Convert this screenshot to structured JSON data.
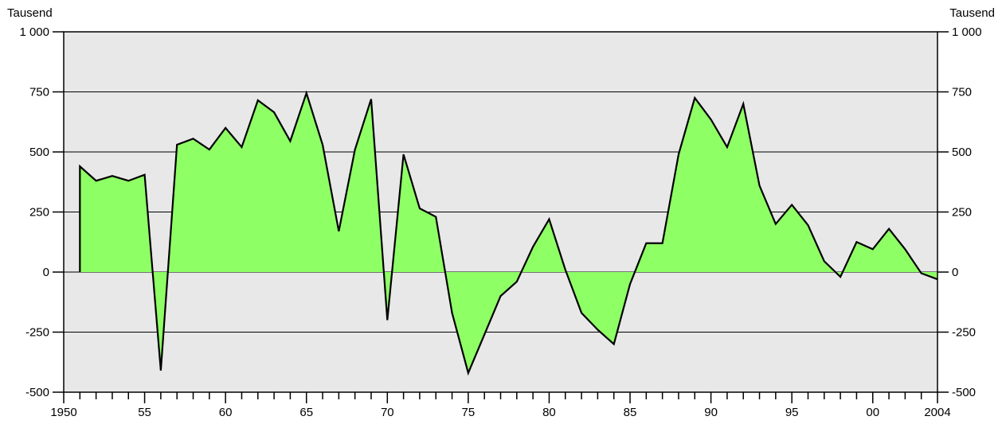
{
  "chart_data": {
    "type": "area",
    "unit_label_left": "Tausend",
    "unit_label_right": "Tausend",
    "ylim": [
      -500,
      1000
    ],
    "yticks": [
      1000,
      750,
      500,
      250,
      0,
      -250,
      -500
    ],
    "ytick_labels": [
      "1 000",
      "750",
      "500",
      "250",
      "0",
      "-250",
      "-500"
    ],
    "xlim": [
      1950,
      2004
    ],
    "xtick_years": [
      1950,
      1955,
      1960,
      1965,
      1970,
      1975,
      1980,
      1985,
      1990,
      1995,
      2000,
      2004
    ],
    "xtick_labels": [
      "1950",
      "55",
      "60",
      "65",
      "70",
      "75",
      "80",
      "85",
      "90",
      "95",
      "00",
      "2004"
    ],
    "grid": "horizontal",
    "colors": {
      "fill": "#8fff66",
      "line": "#000000",
      "plot_background": "#e8e8e8",
      "grid": "#000000"
    },
    "x": [
      1951,
      1952,
      1953,
      1954,
      1955,
      1956,
      1957,
      1958,
      1959,
      1960,
      1961,
      1962,
      1963,
      1964,
      1965,
      1966,
      1967,
      1968,
      1969,
      1970,
      1971,
      1972,
      1973,
      1974,
      1975,
      1976,
      1977,
      1978,
      1979,
      1980,
      1981,
      1982,
      1983,
      1984,
      1985,
      1986,
      1987,
      1988,
      1989,
      1990,
      1991,
      1992,
      1993,
      1994,
      1995,
      1996,
      1997,
      1998,
      1999,
      2000,
      2001,
      2002,
      2003,
      2004
    ],
    "values": [
      440,
      380,
      400,
      380,
      405,
      -410,
      530,
      555,
      510,
      600,
      520,
      715,
      665,
      545,
      745,
      530,
      170,
      510,
      720,
      -200,
      490,
      265,
      230,
      -170,
      -420,
      -260,
      -100,
      -40,
      105,
      220,
      10,
      -170,
      -240,
      -300,
      -50,
      120,
      120,
      490,
      725,
      635,
      520,
      700,
      360,
      200,
      280,
      195,
      45,
      -20,
      125,
      95,
      180,
      95,
      -5,
      -30
    ]
  }
}
